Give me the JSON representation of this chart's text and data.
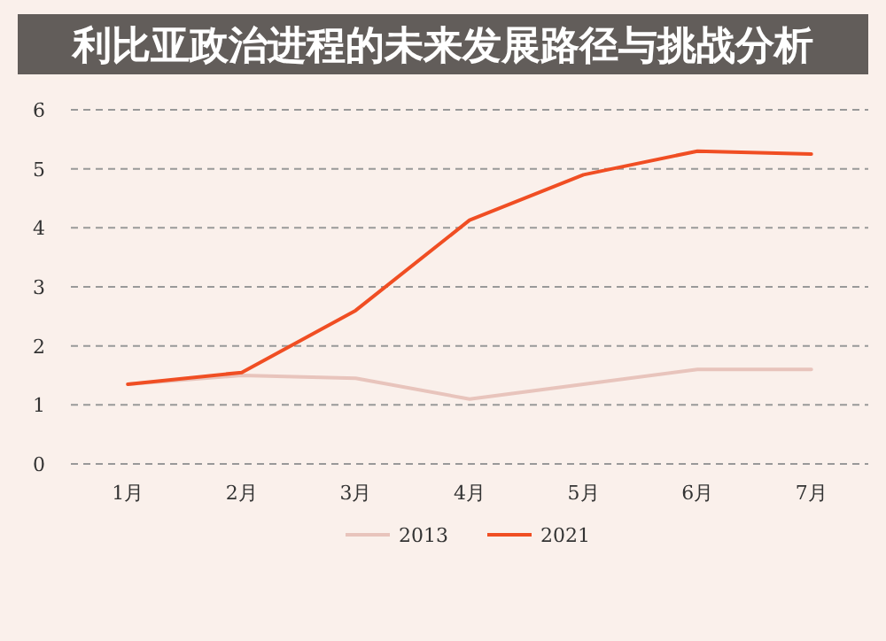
{
  "chart_data": {
    "type": "line",
    "title": "利比亚政治进程的未来发展路径与挑战分析",
    "categories": [
      "1月",
      "2月",
      "3月",
      "4月",
      "5月",
      "6月",
      "7月"
    ],
    "series": [
      {
        "name": "2013",
        "color": "#e8c4bc",
        "values": [
          1.35,
          1.5,
          1.45,
          1.1,
          1.35,
          1.6,
          1.6
        ]
      },
      {
        "name": "2021",
        "color": "#f04e23",
        "values": [
          1.35,
          1.55,
          2.6,
          4.13,
          4.9,
          5.3,
          5.25
        ]
      }
    ],
    "ylim": [
      0,
      6
    ],
    "yticks": [
      0,
      1,
      2,
      3,
      4,
      5,
      6
    ],
    "grid": "y",
    "legend": "bottom",
    "marker": "none",
    "line_style": "solid"
  }
}
